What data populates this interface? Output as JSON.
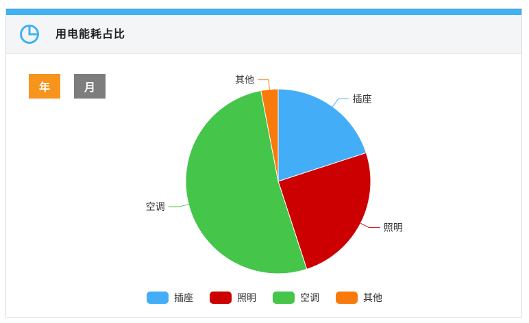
{
  "panel": {
    "title": "用电能耗占比",
    "header_icon": "pie-chart-icon",
    "accent_color": "#3fb1f5"
  },
  "buttons": {
    "year_label": "年",
    "month_label": "月",
    "year_color": "#f7941d",
    "month_color": "#7d7d7d"
  },
  "chart_data": {
    "type": "pie",
    "title": "",
    "categories": [
      "插座",
      "照明",
      "空调",
      "其他"
    ],
    "values": [
      20,
      25,
      52,
      3
    ],
    "colors": [
      "#44adf8",
      "#cc0000",
      "#45c54a",
      "#f97a0c"
    ],
    "legend_position": "bottom-center"
  }
}
